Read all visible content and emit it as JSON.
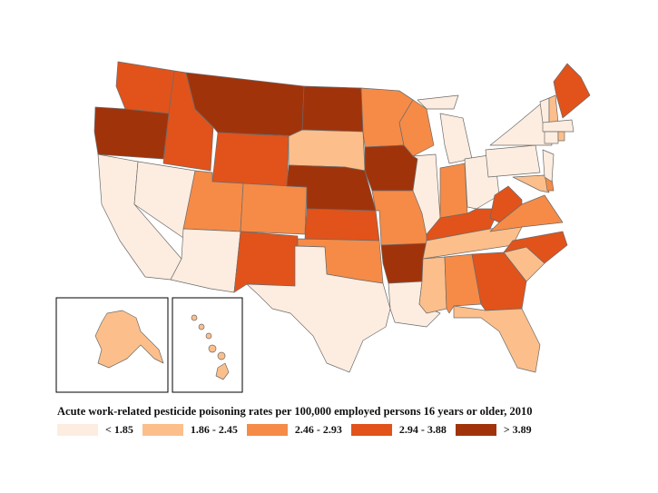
{
  "map": {
    "title": "Acute work-related pesticide poisoning rates per 100,000 employed persons 16 years or older, 2010",
    "legend": [
      {
        "label": "< 1.85",
        "color": "#fdede0"
      },
      {
        "label": "1.86 - 2.45",
        "color": "#fcbf8b"
      },
      {
        "label": "2.46 - 2.93",
        "color": "#f58b47"
      },
      {
        "label": "2.94 - 3.88",
        "color": "#e1531b"
      },
      {
        "label": "> 3.89",
        "color": "#a1330b"
      }
    ],
    "state_class": {
      "WA": 3,
      "OR": 4,
      "CA": 0,
      "NV": 0,
      "ID": 3,
      "MT": 4,
      "WY": 3,
      "UT": 2,
      "AZ": 0,
      "CO": 2,
      "NM": 3,
      "ND": 4,
      "SD": 1,
      "NE": 4,
      "KS": 3,
      "OK": 2,
      "TX": 0,
      "MN": 2,
      "IA": 4,
      "MO": 2,
      "AR": 4,
      "LA": 0,
      "WI": 2,
      "IL": 0,
      "MI": 0,
      "IN": 2,
      "OH": 0,
      "KY": 3,
      "TN": 1,
      "MS": 1,
      "AL": 2,
      "GA": 3,
      "FL": 1,
      "SC": 1,
      "NC": 3,
      "VA": 2,
      "WV": 3,
      "PA": 0,
      "NY": 0,
      "MD": 1,
      "DE": 2,
      "NJ": 0,
      "VT": 0,
      "NH": 1,
      "ME": 3,
      "MA": 0,
      "CT": 0,
      "RI": 1,
      "AK": 1,
      "HI": 1
    }
  }
}
